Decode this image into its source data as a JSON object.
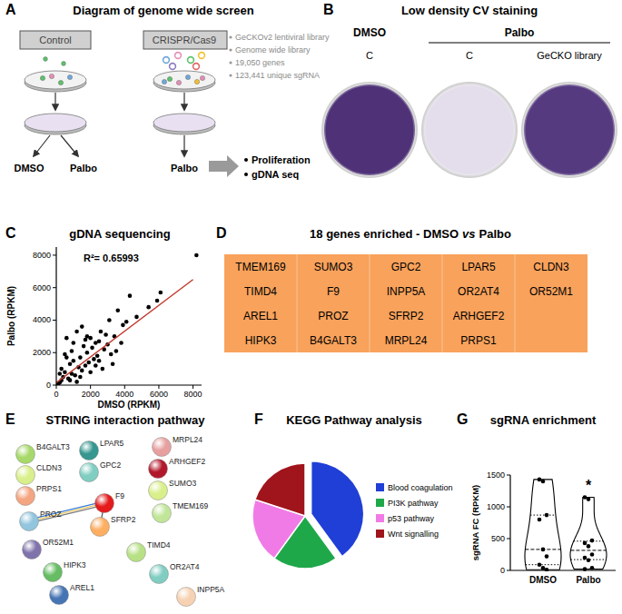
{
  "panel_labels": [
    "A",
    "B",
    "C",
    "D",
    "E",
    "F",
    "G"
  ],
  "panels": {
    "A": {
      "title": "Diagram of genome wide screen",
      "boxes": [
        "Control",
        "CRISPR/Cas9"
      ],
      "library_info": [
        "GeCKOv2 lentiviral library",
        "Genome wide library",
        "19,050 genes",
        "123,441 unique sgRNA"
      ],
      "treatments_control": [
        "DMSO",
        "Palbo"
      ],
      "treatments_crispr": [
        "Palbo"
      ],
      "readouts": [
        "Proliferation",
        "gDNA seq"
      ]
    },
    "B": {
      "title": "Low density CV staining",
      "groups": [
        {
          "name": "DMSO",
          "wells": [
            {
              "label": "C",
              "color": "#4e3177"
            }
          ]
        },
        {
          "name": "Palbo",
          "wells": [
            {
              "label": "C",
              "color": "#e4ddeb"
            },
            {
              "label": "GeCKO library",
              "color": "#553a80"
            }
          ]
        }
      ]
    },
    "D": {
      "title_parts": [
        "18 genes enriched - DMSO",
        "vs",
        "Palbo"
      ],
      "columns": [
        [
          "TMEM169",
          "TIMD4",
          "AREL1",
          "HIPK3"
        ],
        [
          "SUMO3",
          "F9",
          "PROZ",
          "B4GALT3"
        ],
        [
          "GPC2",
          "INPP5A",
          "SFRP2",
          "MRPL24"
        ],
        [
          "LPAR5",
          "OR2AT4",
          "ARHGEF2",
          "PRPS1"
        ],
        [
          "CLDN3",
          "OR52M1"
        ]
      ]
    },
    "E": {
      "title": "STRING interaction pathway",
      "nodes": [
        {
          "label": "B4GALT3",
          "color": "#a6d96a"
        },
        {
          "label": "CLDN3",
          "color": "#d9ef8b"
        },
        {
          "label": "PRPS1",
          "color": "#f4a582"
        },
        {
          "label": "PROZ",
          "color": "#92c5de"
        },
        {
          "label": "OR52M1",
          "color": "#8073ac"
        },
        {
          "label": "HIPK3",
          "color": "#66bd63"
        },
        {
          "label": "AREL1",
          "color": "#4575b4"
        },
        {
          "label": "LPAR5",
          "color": "#35978f"
        },
        {
          "label": "GPC2",
          "color": "#80cdc1"
        },
        {
          "label": "F9",
          "color": "#e41a1c"
        },
        {
          "label": "SFRP2",
          "color": "#fdae61"
        },
        {
          "label": "TIMD4",
          "color": "#b8e186"
        },
        {
          "label": "OR2AT4",
          "color": "#80cdc1"
        },
        {
          "label": "INPP5A",
          "color": "#f6d2b3"
        },
        {
          "label": "MRPL24",
          "color": "#e7a0a0"
        },
        {
          "label": "ARHGEF2",
          "color": "#b2182b"
        },
        {
          "label": "SUMO3",
          "color": "#d9ef8b"
        },
        {
          "label": "TMEM169",
          "color": "#c2e699"
        }
      ],
      "edges": [
        [
          "PROZ",
          "F9"
        ],
        [
          "F9",
          "SFRP2"
        ]
      ]
    }
  },
  "chart_data": [
    {
      "type": "scatter",
      "title": "gDNA sequencing",
      "x_label": "DMSO (RPKM)",
      "y_label": "Palbo (RPKM)",
      "xlim": [
        0,
        8500
      ],
      "ylim": [
        0,
        8500
      ],
      "xticks": [
        0,
        2000,
        4000,
        6000,
        8000
      ],
      "yticks": [
        0,
        2000,
        4000,
        6000,
        8000
      ],
      "annotations": [
        {
          "text": "R²= 0.65993"
        }
      ],
      "series": [
        {
          "type": "scatter",
          "color": "#000000",
          "marker": "circle",
          "x": [
            8200,
            6100,
            5900,
            5400,
            4300,
            4100,
            3900,
            3600,
            3400,
            3100,
            3000,
            2800,
            2600,
            2500,
            2400,
            2300,
            2200,
            2100,
            2000,
            1900,
            1800,
            1700,
            1600,
            1500,
            1400,
            1300,
            1200,
            1100,
            1000,
            900,
            800,
            700,
            600,
            500,
            400,
            300,
            200,
            100,
            2700,
            3200,
            3500,
            1500,
            1000,
            500,
            2000,
            2500,
            1200,
            800,
            300,
            4700,
            1800,
            2300,
            3800,
            600,
            1400,
            2900,
            200,
            1700,
            900,
            3300
          ],
          "values": [
            8000,
            5700,
            5200,
            4800,
            5500,
            3900,
            3700,
            4600,
            3000,
            4000,
            2500,
            2200,
            3300,
            2700,
            1800,
            2600,
            1600,
            2300,
            2900,
            1400,
            2000,
            1200,
            2400,
            900,
            1700,
            1100,
            3300,
            600,
            1500,
            700,
            1300,
            400,
            2900,
            800,
            500,
            300,
            150,
            60,
            1000,
            1900,
            2100,
            3600,
            2600,
            1900,
            800,
            1500,
            200,
            300,
            1000,
            4200,
            3000,
            1200,
            2600,
            1700,
            500,
            3100,
            700,
            2800,
            2100,
            1300
          ]
        },
        {
          "type": "line",
          "color": "#c0392b",
          "line_style": "solid",
          "x": [
            0,
            8000
          ],
          "values": [
            150,
            6500
          ]
        }
      ]
    },
    {
      "type": "pie",
      "title": "KEGG Pathway analysis",
      "categories": [
        "Blood coagulation",
        "PI3K pathway",
        "p53 pathway",
        "Wnt signalling"
      ],
      "values": [
        40,
        20,
        20,
        20
      ],
      "colors": [
        "#1f3fd6",
        "#1fa84a",
        "#f07be6",
        "#a0141c"
      ],
      "legend": "right"
    },
    {
      "type": "violin",
      "title": "sgRNA enrichment",
      "y_label": "sgRNA FC (RPKM)",
      "categories": [
        "DMSO",
        "Palbo"
      ],
      "values": [
        [
          1430,
          1400,
          870,
          800,
          330,
          220,
          90,
          40,
          10
        ],
        [
          1150,
          1120,
          470,
          430,
          380,
          250,
          200,
          160,
          40,
          20
        ]
      ],
      "ylim": [
        0,
        1500
      ],
      "yticks": [
        0,
        500,
        1000,
        1500
      ],
      "annotations": [
        {
          "text": "*",
          "category": "Palbo"
        }
      ]
    }
  ]
}
